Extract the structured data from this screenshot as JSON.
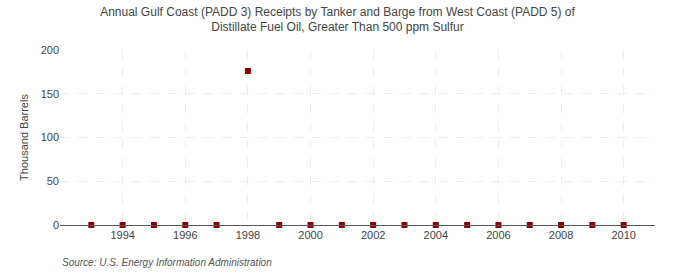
{
  "chart_data": {
    "type": "scatter",
    "title": "Annual Gulf Coast (PADD 3) Receipts by Tanker and Barge from West Coast (PADD 5) of\nDistillate Fuel Oil, Greater Than 500 ppm Sulfur",
    "ylabel": "Thousand Barrels",
    "annotations": [
      "Source: U.S. Energy Information Administration"
    ],
    "x": [
      1993,
      1994,
      1995,
      1996,
      1997,
      1998,
      1999,
      2000,
      2001,
      2002,
      2003,
      2004,
      2005,
      2006,
      2007,
      2008,
      2009,
      2010
    ],
    "values": [
      0,
      0,
      0,
      0,
      0,
      176,
      0,
      0,
      0,
      0,
      0,
      0,
      0,
      0,
      0,
      0,
      0,
      0
    ],
    "color": "#8b0000",
    "marker": "square",
    "xlim": [
      1992.0,
      2011.0
    ],
    "xticks": [
      1994,
      1996,
      1998,
      2000,
      2002,
      2004,
      2006,
      2008,
      2010
    ],
    "ylim": [
      0,
      200
    ],
    "yticks": [
      0,
      50,
      100,
      150,
      200
    ],
    "grid": true
  }
}
